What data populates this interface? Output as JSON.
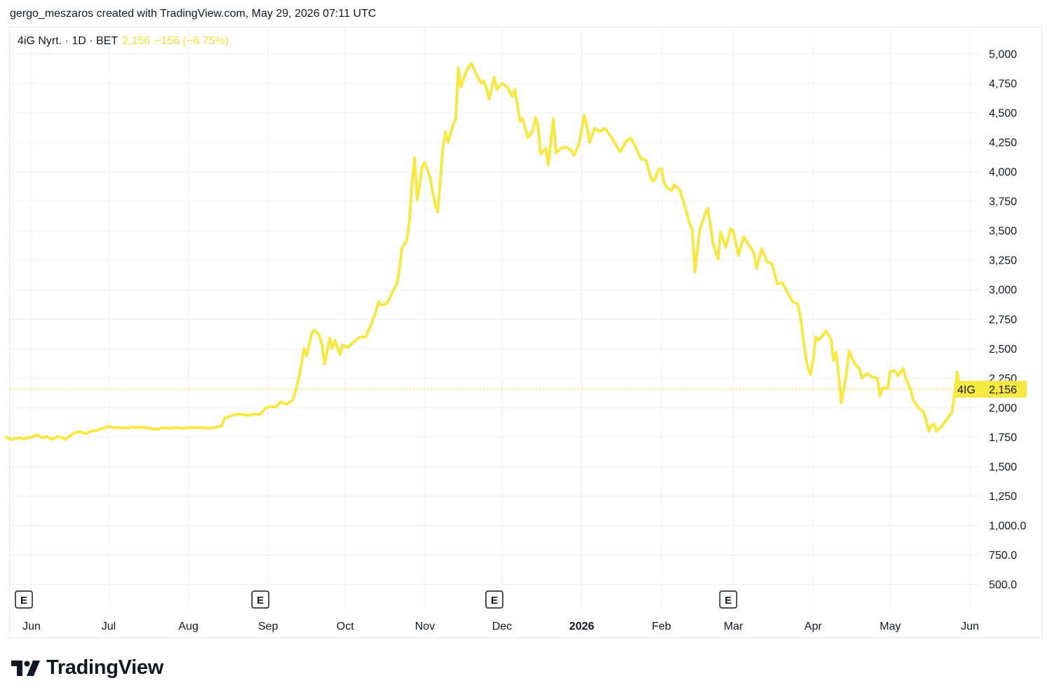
{
  "header": {
    "caption": "gergo_meszaros created with TradingView.com, May 29, 2026 07:11 UTC"
  },
  "legend": {
    "symbol": "4iG Nyrt. · 1D · BET",
    "last": "2,156",
    "change": "−156 (−6.75%)"
  },
  "price_tag": {
    "ticker": "4IG",
    "value": "2,156"
  },
  "brand": {
    "name": "TradingView"
  },
  "colors": {
    "line": "#f7e842",
    "tag": "#f7e842",
    "grid": "#f0f0f3",
    "text": "#131722"
  },
  "earnings_marker": "E",
  "chart_data": {
    "type": "line",
    "title": "",
    "xlabel": "",
    "ylabel": "",
    "ylim": [
      500,
      5000
    ],
    "y_ticks": [
      "5,000",
      "4,750",
      "4,500",
      "4,250",
      "4,000",
      "3,750",
      "3,500",
      "3,250",
      "3,000",
      "2,750",
      "2,500",
      "2,250",
      "2,000",
      "1,750",
      "1,500",
      "1,250",
      "1,000.0",
      "750.0",
      "500.0"
    ],
    "y_tick_values": [
      5000,
      4750,
      4500,
      4250,
      4000,
      3750,
      3500,
      3250,
      3000,
      2750,
      2500,
      2250,
      2000,
      1750,
      1500,
      1250,
      1000,
      750,
      500
    ],
    "x_ticks": [
      {
        "label": "Jun",
        "date": "2025-06-01",
        "bold": false
      },
      {
        "label": "Jul",
        "date": "2025-07-01",
        "bold": false
      },
      {
        "label": "Aug",
        "date": "2025-08-01",
        "bold": false
      },
      {
        "label": "Sep",
        "date": "2025-09-01",
        "bold": false
      },
      {
        "label": "Oct",
        "date": "2025-10-01",
        "bold": false
      },
      {
        "label": "Nov",
        "date": "2025-11-01",
        "bold": false
      },
      {
        "label": "Dec",
        "date": "2025-12-01",
        "bold": false
      },
      {
        "label": "2026",
        "date": "2026-01-01",
        "bold": true
      },
      {
        "label": "Feb",
        "date": "2026-02-01",
        "bold": false
      },
      {
        "label": "Mar",
        "date": "2026-03-01",
        "bold": false
      },
      {
        "label": "Apr",
        "date": "2026-04-01",
        "bold": false
      },
      {
        "label": "May",
        "date": "2026-05-01",
        "bold": false
      },
      {
        "label": "Jun",
        "date": "2026-06-01",
        "bold": false
      }
    ],
    "earnings_dates": [
      "2025-05-29",
      "2025-08-29",
      "2025-11-28",
      "2026-02-27"
    ],
    "last_value": 2156,
    "series": [
      {
        "points": [
          [
            "2025-05-22",
            1750
          ],
          [
            "2025-05-24",
            1730
          ],
          [
            "2025-05-27",
            1745
          ],
          [
            "2025-05-29",
            1735
          ],
          [
            "2025-06-01",
            1750
          ],
          [
            "2025-06-03",
            1770
          ],
          [
            "2025-06-05",
            1745
          ],
          [
            "2025-06-07",
            1755
          ],
          [
            "2025-06-09",
            1730
          ],
          [
            "2025-06-11",
            1755
          ],
          [
            "2025-06-13",
            1745
          ],
          [
            "2025-06-14",
            1730
          ],
          [
            "2025-06-16",
            1760
          ],
          [
            "2025-06-18",
            1790
          ],
          [
            "2025-06-20",
            1795
          ],
          [
            "2025-06-22",
            1780
          ],
          [
            "2025-06-24",
            1800
          ],
          [
            "2025-06-26",
            1805
          ],
          [
            "2025-06-28",
            1820
          ],
          [
            "2025-07-01",
            1840
          ],
          [
            "2025-07-03",
            1830
          ],
          [
            "2025-07-06",
            1830
          ],
          [
            "2025-07-08",
            1825
          ],
          [
            "2025-07-10",
            1835
          ],
          [
            "2025-07-13",
            1830
          ],
          [
            "2025-07-15",
            1835
          ],
          [
            "2025-07-18",
            1820
          ],
          [
            "2025-07-20",
            1815
          ],
          [
            "2025-07-22",
            1830
          ],
          [
            "2025-07-25",
            1825
          ],
          [
            "2025-07-27",
            1830
          ],
          [
            "2025-07-30",
            1825
          ],
          [
            "2025-08-01",
            1830
          ],
          [
            "2025-08-03",
            1830
          ],
          [
            "2025-08-06",
            1830
          ],
          [
            "2025-08-09",
            1825
          ],
          [
            "2025-08-12",
            1835
          ],
          [
            "2025-08-14",
            1845
          ],
          [
            "2025-08-15",
            1910
          ],
          [
            "2025-08-17",
            1925
          ],
          [
            "2025-08-19",
            1940
          ],
          [
            "2025-08-21",
            1945
          ],
          [
            "2025-08-24",
            1935
          ],
          [
            "2025-08-27",
            1945
          ],
          [
            "2025-08-29",
            1945
          ],
          [
            "2025-08-31",
            1995
          ],
          [
            "2025-09-02",
            2010
          ],
          [
            "2025-09-04",
            2005
          ],
          [
            "2025-09-06",
            2050
          ],
          [
            "2025-09-08",
            2030
          ],
          [
            "2025-09-10",
            2050
          ],
          [
            "2025-09-11",
            2090
          ],
          [
            "2025-09-13",
            2250
          ],
          [
            "2025-09-15",
            2500
          ],
          [
            "2025-09-16",
            2440
          ],
          [
            "2025-09-18",
            2630
          ],
          [
            "2025-09-19",
            2660
          ],
          [
            "2025-09-21",
            2610
          ],
          [
            "2025-09-22",
            2530
          ],
          [
            "2025-09-23",
            2370
          ],
          [
            "2025-09-25",
            2590
          ],
          [
            "2025-09-26",
            2500
          ],
          [
            "2025-09-27",
            2570
          ],
          [
            "2025-09-29",
            2450
          ],
          [
            "2025-09-30",
            2530
          ],
          [
            "2025-10-02",
            2510
          ],
          [
            "2025-10-03",
            2530
          ],
          [
            "2025-10-05",
            2570
          ],
          [
            "2025-10-07",
            2600
          ],
          [
            "2025-10-09",
            2600
          ],
          [
            "2025-10-11",
            2700
          ],
          [
            "2025-10-13",
            2820
          ],
          [
            "2025-10-14",
            2900
          ],
          [
            "2025-10-15",
            2870
          ],
          [
            "2025-10-17",
            2880
          ],
          [
            "2025-10-19",
            2960
          ],
          [
            "2025-10-21",
            3050
          ],
          [
            "2025-10-22",
            3150
          ],
          [
            "2025-10-23",
            3350
          ],
          [
            "2025-10-25",
            3420
          ],
          [
            "2025-10-26",
            3600
          ],
          [
            "2025-10-27",
            3900
          ],
          [
            "2025-10-28",
            4120
          ],
          [
            "2025-10-29",
            3760
          ],
          [
            "2025-10-31",
            4050
          ],
          [
            "2025-11-01",
            4080
          ],
          [
            "2025-11-03",
            3950
          ],
          [
            "2025-11-05",
            3720
          ],
          [
            "2025-11-06",
            3660
          ],
          [
            "2025-11-08",
            4200
          ],
          [
            "2025-11-09",
            4340
          ],
          [
            "2025-11-10",
            4250
          ],
          [
            "2025-11-12",
            4400
          ],
          [
            "2025-11-13",
            4450
          ],
          [
            "2025-11-14",
            4880
          ],
          [
            "2025-11-15",
            4720
          ],
          [
            "2025-11-17",
            4850
          ],
          [
            "2025-11-19",
            4920
          ],
          [
            "2025-11-21",
            4830
          ],
          [
            "2025-11-23",
            4750
          ],
          [
            "2025-11-24",
            4770
          ],
          [
            "2025-11-25",
            4700
          ],
          [
            "2025-11-26",
            4620
          ],
          [
            "2025-11-28",
            4800
          ],
          [
            "2025-11-29",
            4700
          ],
          [
            "2025-12-01",
            4750
          ],
          [
            "2025-12-03",
            4720
          ],
          [
            "2025-12-05",
            4640
          ],
          [
            "2025-12-06",
            4700
          ],
          [
            "2025-12-08",
            4430
          ],
          [
            "2025-12-09",
            4450
          ],
          [
            "2025-12-11",
            4290
          ],
          [
            "2025-12-13",
            4350
          ],
          [
            "2025-12-14",
            4460
          ],
          [
            "2025-12-15",
            4390
          ],
          [
            "2025-12-16",
            4150
          ],
          [
            "2025-12-18",
            4200
          ],
          [
            "2025-12-19",
            4060
          ],
          [
            "2025-12-21",
            4450
          ],
          [
            "2025-12-22",
            4160
          ],
          [
            "2025-12-24",
            4200
          ],
          [
            "2025-12-26",
            4210
          ],
          [
            "2025-12-28",
            4180
          ],
          [
            "2025-12-29",
            4140
          ],
          [
            "2025-12-31",
            4240
          ],
          [
            "2026-01-02",
            4480
          ],
          [
            "2026-01-03",
            4390
          ],
          [
            "2026-01-04",
            4250
          ],
          [
            "2026-01-06",
            4370
          ],
          [
            "2026-01-08",
            4340
          ],
          [
            "2026-01-10",
            4370
          ],
          [
            "2026-01-12",
            4310
          ],
          [
            "2026-01-14",
            4240
          ],
          [
            "2026-01-16",
            4170
          ],
          [
            "2026-01-18",
            4250
          ],
          [
            "2026-01-20",
            4290
          ],
          [
            "2026-01-22",
            4210
          ],
          [
            "2026-01-24",
            4110
          ],
          [
            "2026-01-26",
            4100
          ],
          [
            "2026-01-28",
            3940
          ],
          [
            "2026-01-29",
            3920
          ],
          [
            "2026-01-31",
            4020
          ],
          [
            "2026-02-01",
            4030
          ],
          [
            "2026-02-02",
            3910
          ],
          [
            "2026-02-03",
            3870
          ],
          [
            "2026-02-05",
            3840
          ],
          [
            "2026-02-06",
            3890
          ],
          [
            "2026-02-08",
            3850
          ],
          [
            "2026-02-10",
            3720
          ],
          [
            "2026-02-12",
            3560
          ],
          [
            "2026-02-13",
            3510
          ],
          [
            "2026-02-14",
            3150
          ],
          [
            "2026-02-16",
            3520
          ],
          [
            "2026-02-18",
            3640
          ],
          [
            "2026-02-19",
            3690
          ],
          [
            "2026-02-20",
            3560
          ],
          [
            "2026-02-21",
            3400
          ],
          [
            "2026-02-23",
            3260
          ],
          [
            "2026-02-24",
            3490
          ],
          [
            "2026-02-26",
            3360
          ],
          [
            "2026-02-28",
            3520
          ],
          [
            "2026-03-01",
            3490
          ],
          [
            "2026-03-03",
            3290
          ],
          [
            "2026-03-05",
            3450
          ],
          [
            "2026-03-07",
            3380
          ],
          [
            "2026-03-09",
            3310
          ],
          [
            "2026-03-10",
            3180
          ],
          [
            "2026-03-12",
            3350
          ],
          [
            "2026-03-14",
            3240
          ],
          [
            "2026-03-16",
            3220
          ],
          [
            "2026-03-17",
            3140
          ],
          [
            "2026-03-18",
            3050
          ],
          [
            "2026-03-20",
            3060
          ],
          [
            "2026-03-22",
            2980
          ],
          [
            "2026-03-24",
            2900
          ],
          [
            "2026-03-26",
            2880
          ],
          [
            "2026-03-27",
            2780
          ],
          [
            "2026-03-29",
            2450
          ],
          [
            "2026-03-30",
            2330
          ],
          [
            "2026-03-31",
            2280
          ],
          [
            "2026-04-01",
            2400
          ],
          [
            "2026-04-02",
            2600
          ],
          [
            "2026-04-03",
            2570
          ],
          [
            "2026-04-05",
            2620
          ],
          [
            "2026-04-06",
            2650
          ],
          [
            "2026-04-08",
            2580
          ],
          [
            "2026-04-09",
            2400
          ],
          [
            "2026-04-10",
            2470
          ],
          [
            "2026-04-12",
            2040
          ],
          [
            "2026-04-14",
            2290
          ],
          [
            "2026-04-15",
            2480
          ],
          [
            "2026-04-17",
            2380
          ],
          [
            "2026-04-19",
            2330
          ],
          [
            "2026-04-20",
            2250
          ],
          [
            "2026-04-22",
            2290
          ],
          [
            "2026-04-24",
            2260
          ],
          [
            "2026-04-26",
            2250
          ],
          [
            "2026-04-27",
            2100
          ],
          [
            "2026-04-28",
            2170
          ],
          [
            "2026-04-30",
            2160
          ],
          [
            "2026-05-01",
            2310
          ],
          [
            "2026-05-03",
            2310
          ],
          [
            "2026-05-04",
            2270
          ],
          [
            "2026-05-06",
            2330
          ],
          [
            "2026-05-07",
            2250
          ],
          [
            "2026-05-09",
            2150
          ],
          [
            "2026-05-10",
            2060
          ],
          [
            "2026-05-12",
            2000
          ],
          [
            "2026-05-14",
            1960
          ],
          [
            "2026-05-15",
            1890
          ],
          [
            "2026-05-16",
            1800
          ],
          [
            "2026-05-17",
            1850
          ],
          [
            "2026-05-18",
            1860
          ],
          [
            "2026-05-19",
            1800
          ],
          [
            "2026-05-21",
            1840
          ],
          [
            "2026-05-23",
            1900
          ],
          [
            "2026-05-25",
            1960
          ],
          [
            "2026-05-26",
            2120
          ],
          [
            "2026-05-27",
            2300
          ],
          [
            "2026-05-28",
            2180
          ],
          [
            "2026-05-29",
            2156
          ]
        ]
      }
    ]
  }
}
